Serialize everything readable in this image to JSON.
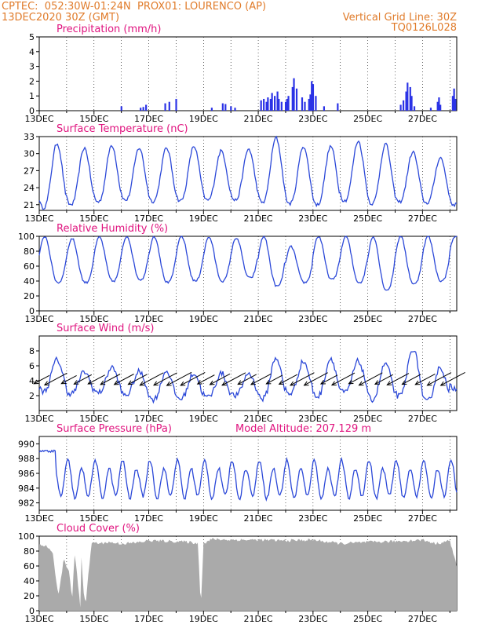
{
  "header": {
    "line1_left": "CPTEC:  052:30W-01:24N  PROX01: LOURENCO (AP)",
    "line2_left": "13DEC2020 30Z (GMT)",
    "line2_right": "Vertical Grid Line: 30Z",
    "line3_right": "TQ0126L028"
  },
  "colors": {
    "header": "#e07b2a",
    "title": "#e0147f",
    "line": "#2b48d8",
    "bar": "#2b33e6",
    "cloud": "#aaaaaa",
    "wind_vector": "#000000"
  },
  "chart_data": [
    {
      "type": "bar",
      "title": "Precipitation (mm/h)",
      "x_unit": "days since 13DEC",
      "xlim": [
        0,
        15.25
      ],
      "ylim": [
        0,
        5
      ],
      "yticks": [
        0,
        1,
        2,
        3,
        4,
        5
      ],
      "xtick_labels": [
        "13DEC",
        "15DEC",
        "17DEC",
        "19DEC",
        "21DEC",
        "23DEC",
        "25DEC",
        "27DEC"
      ],
      "xtick_values": [
        0,
        2,
        4,
        6,
        8,
        10,
        12,
        14
      ],
      "grid": "vertical dashed",
      "x": [
        3.0,
        3.7,
        3.8,
        3.9,
        4.6,
        4.75,
        5.0,
        6.3,
        6.7,
        6.8,
        7.0,
        7.15,
        8.1,
        8.2,
        8.3,
        8.35,
        8.45,
        8.5,
        8.6,
        8.7,
        8.75,
        8.85,
        9.0,
        9.05,
        9.1,
        9.25,
        9.3,
        9.4,
        9.6,
        9.7,
        9.85,
        9.9,
        9.95,
        10.0,
        10.1,
        10.4,
        10.9,
        13.2,
        13.3,
        13.4,
        13.45,
        13.55,
        13.6,
        13.7,
        14.3,
        14.55,
        14.6,
        14.65,
        15.1,
        15.15,
        15.2
      ],
      "values": [
        0.3,
        0.2,
        0.25,
        0.4,
        0.5,
        0.6,
        0.8,
        0.2,
        0.5,
        0.45,
        0.3,
        0.2,
        0.7,
        0.8,
        0.6,
        0.9,
        0.8,
        1.2,
        1.0,
        1.3,
        0.8,
        0.6,
        0.6,
        0.8,
        1.0,
        1.6,
        2.2,
        1.5,
        0.9,
        0.6,
        0.8,
        1.1,
        2.0,
        1.8,
        1.0,
        0.3,
        0.5,
        0.4,
        0.7,
        1.3,
        1.9,
        1.6,
        1.0,
        0.3,
        0.2,
        0.6,
        0.9,
        0.4,
        1.0,
        1.5,
        0.8
      ]
    },
    {
      "type": "line",
      "title": "Surface Temperature (nC)",
      "x_unit": "days since 13DEC",
      "xlim": [
        0,
        15.25
      ],
      "ylim": [
        20,
        33
      ],
      "yticks": [
        21,
        24,
        27,
        30,
        33
      ],
      "xtick_labels": [
        "13DEC",
        "15DEC",
        "17DEC",
        "19DEC",
        "21DEC",
        "23DEC",
        "25DEC",
        "27DEC"
      ],
      "xtick_values": [
        0,
        2,
        4,
        6,
        8,
        10,
        12,
        14
      ],
      "grid": "vertical dashed",
      "daily_min": [
        20.5,
        21.0,
        21.5,
        21.8,
        21.6,
        21.7,
        21.8,
        21.8,
        21.4,
        21.2,
        21.0,
        21.7,
        21.2,
        21.5,
        21.3,
        21.0
      ],
      "daily_max": [
        31.8,
        31.0,
        31.5,
        31.0,
        31.0,
        31.3,
        30.5,
        30.8,
        32.8,
        31.3,
        31.3,
        32.2,
        31.7,
        30.3,
        29.3,
        28.5
      ]
    },
    {
      "type": "line",
      "title": "Relative Humidity (%)",
      "x_unit": "days since 13DEC",
      "xlim": [
        0,
        15.25
      ],
      "ylim": [
        0,
        100
      ],
      "yticks": [
        0,
        20,
        40,
        60,
        80,
        100
      ],
      "xtick_labels": [
        "13DEC",
        "15DEC",
        "17DEC",
        "19DEC",
        "21DEC",
        "23DEC",
        "25DEC",
        "27DEC"
      ],
      "xtick_values": [
        0,
        2,
        4,
        6,
        8,
        10,
        12,
        14
      ],
      "grid": "vertical dashed",
      "daily_min": [
        38,
        38,
        40,
        42,
        38,
        40,
        40,
        44,
        33,
        38,
        42,
        38,
        28,
        36,
        40,
        55
      ],
      "daily_max": [
        100,
        97,
        99,
        100,
        100,
        100,
        99,
        98,
        100,
        86,
        100,
        100,
        100,
        100,
        100,
        100
      ]
    },
    {
      "type": "line",
      "title": "Surface Wind (m/s)",
      "x_unit": "days since 13DEC",
      "xlim": [
        0,
        15.25
      ],
      "ylim": [
        0,
        10
      ],
      "yticks": [
        2,
        4,
        6,
        8
      ],
      "xtick_labels": [
        "13DEC",
        "15DEC",
        "17DEC",
        "19DEC",
        "21DEC",
        "23DEC",
        "25DEC",
        "27DEC"
      ],
      "xtick_values": [
        0,
        2,
        4,
        6,
        8,
        10,
        12,
        14
      ],
      "grid": "vertical dashed",
      "daily_min": [
        2.6,
        2.3,
        2.4,
        2.1,
        1.5,
        1.6,
        1.8,
        2.0,
        1.6,
        2.3,
        1.9,
        2.4,
        1.5,
        1.9,
        1.2,
        3.0
      ],
      "daily_max": [
        6.8,
        5.2,
        5.8,
        5.2,
        5.3,
        5.0,
        5.0,
        5.0,
        7.1,
        6.6,
        7.0,
        6.6,
        6.3,
        8.3,
        5.8,
        5.4
      ],
      "vectors": "black wind arrows pointing toward the southwest, drawn along the 4 m/s level"
    },
    {
      "type": "line",
      "title": "Surface Pressure (hPa)",
      "annotation": "Model Altitude: 207.129 m",
      "x_unit": "days since 13DEC",
      "xlim": [
        0,
        15.25
      ],
      "ylim": [
        981,
        991
      ],
      "yticks": [
        982,
        984,
        986,
        988,
        990
      ],
      "xtick_labels": [
        "13DEC",
        "15DEC",
        "17DEC",
        "19DEC",
        "21DEC",
        "23DEC",
        "25DEC",
        "27DEC"
      ],
      "xtick_values": [
        0,
        2,
        4,
        6,
        8,
        10,
        12,
        14
      ],
      "grid": "vertical dashed",
      "start_level": 989.0
    },
    {
      "type": "area",
      "title": "Cloud Cover (%)",
      "x_unit": "days since 13DEC",
      "xlim": [
        0,
        15.25
      ],
      "ylim": [
        0,
        100
      ],
      "yticks": [
        0,
        20,
        40,
        60,
        80,
        100
      ],
      "xtick_labels": [
        "13DEC",
        "15DEC",
        "17DEC",
        "19DEC",
        "21DEC",
        "23DEC",
        "25DEC",
        "27DEC"
      ],
      "xtick_values": [
        0,
        2,
        4,
        6,
        8,
        10,
        12,
        14
      ],
      "grid": "vertical dashed",
      "x": [
        0,
        0.3,
        0.5,
        0.7,
        0.9,
        1.0,
        1.1,
        1.2,
        1.3,
        1.4,
        1.5,
        1.55,
        1.6,
        1.7,
        1.8,
        1.9,
        2.0,
        2.2,
        2.5,
        3.0,
        3.5,
        4.0,
        5.0,
        5.5,
        5.8,
        5.9,
        6.0,
        6.3,
        7.0,
        8.0,
        9.0,
        10.0,
        11.0,
        12.0,
        13.0,
        14.0,
        14.5,
        15.0,
        15.25
      ],
      "values": [
        88,
        86,
        75,
        20,
        70,
        60,
        50,
        15,
        80,
        40,
        5,
        85,
        30,
        10,
        50,
        88,
        92,
        90,
        92,
        90,
        91,
        94,
        93,
        92,
        90,
        5,
        90,
        96,
        95,
        95,
        94,
        95,
        90,
        92,
        93,
        95,
        90,
        94,
        60
      ]
    }
  ]
}
